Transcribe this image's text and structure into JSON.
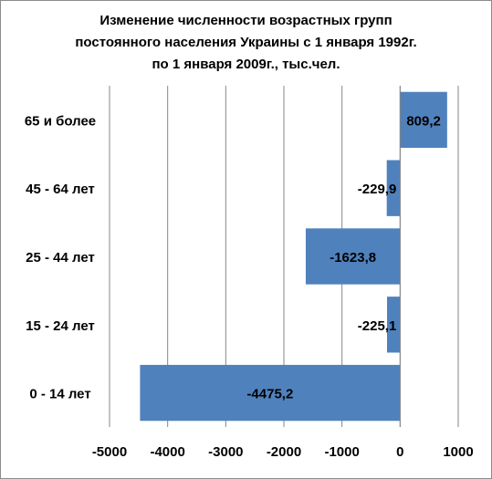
{
  "chart_data": {
    "type": "bar",
    "orientation": "horizontal",
    "title_lines": [
      "Изменение численности возрастных групп",
      "постоянного населения Украины с 1 января 1992г.",
      "по 1 января 2009г., тыс.чел."
    ],
    "categories": [
      "0 - 14 лет",
      "15 - 24 лет",
      "25 - 44 лет",
      "45 - 64 лет",
      "65 и более"
    ],
    "values": [
      -4475.2,
      -225.1,
      -1623.8,
      -229.9,
      809.2
    ],
    "data_labels": [
      "-4475,2",
      "-225,1",
      "-1623,8",
      "-229,9",
      "809,2"
    ],
    "xlim": [
      -5000,
      1000
    ],
    "xticks": [
      -5000,
      -4000,
      -3000,
      -2000,
      -1000,
      0,
      1000
    ],
    "xtick_labels": [
      "-5000",
      "-4000",
      "-3000",
      "-2000",
      "-1000",
      "0",
      "1000"
    ],
    "grid": "vertical major gridlines",
    "legend": "none",
    "bar_color": "#4f81bd",
    "grid_color": "#878787"
  }
}
